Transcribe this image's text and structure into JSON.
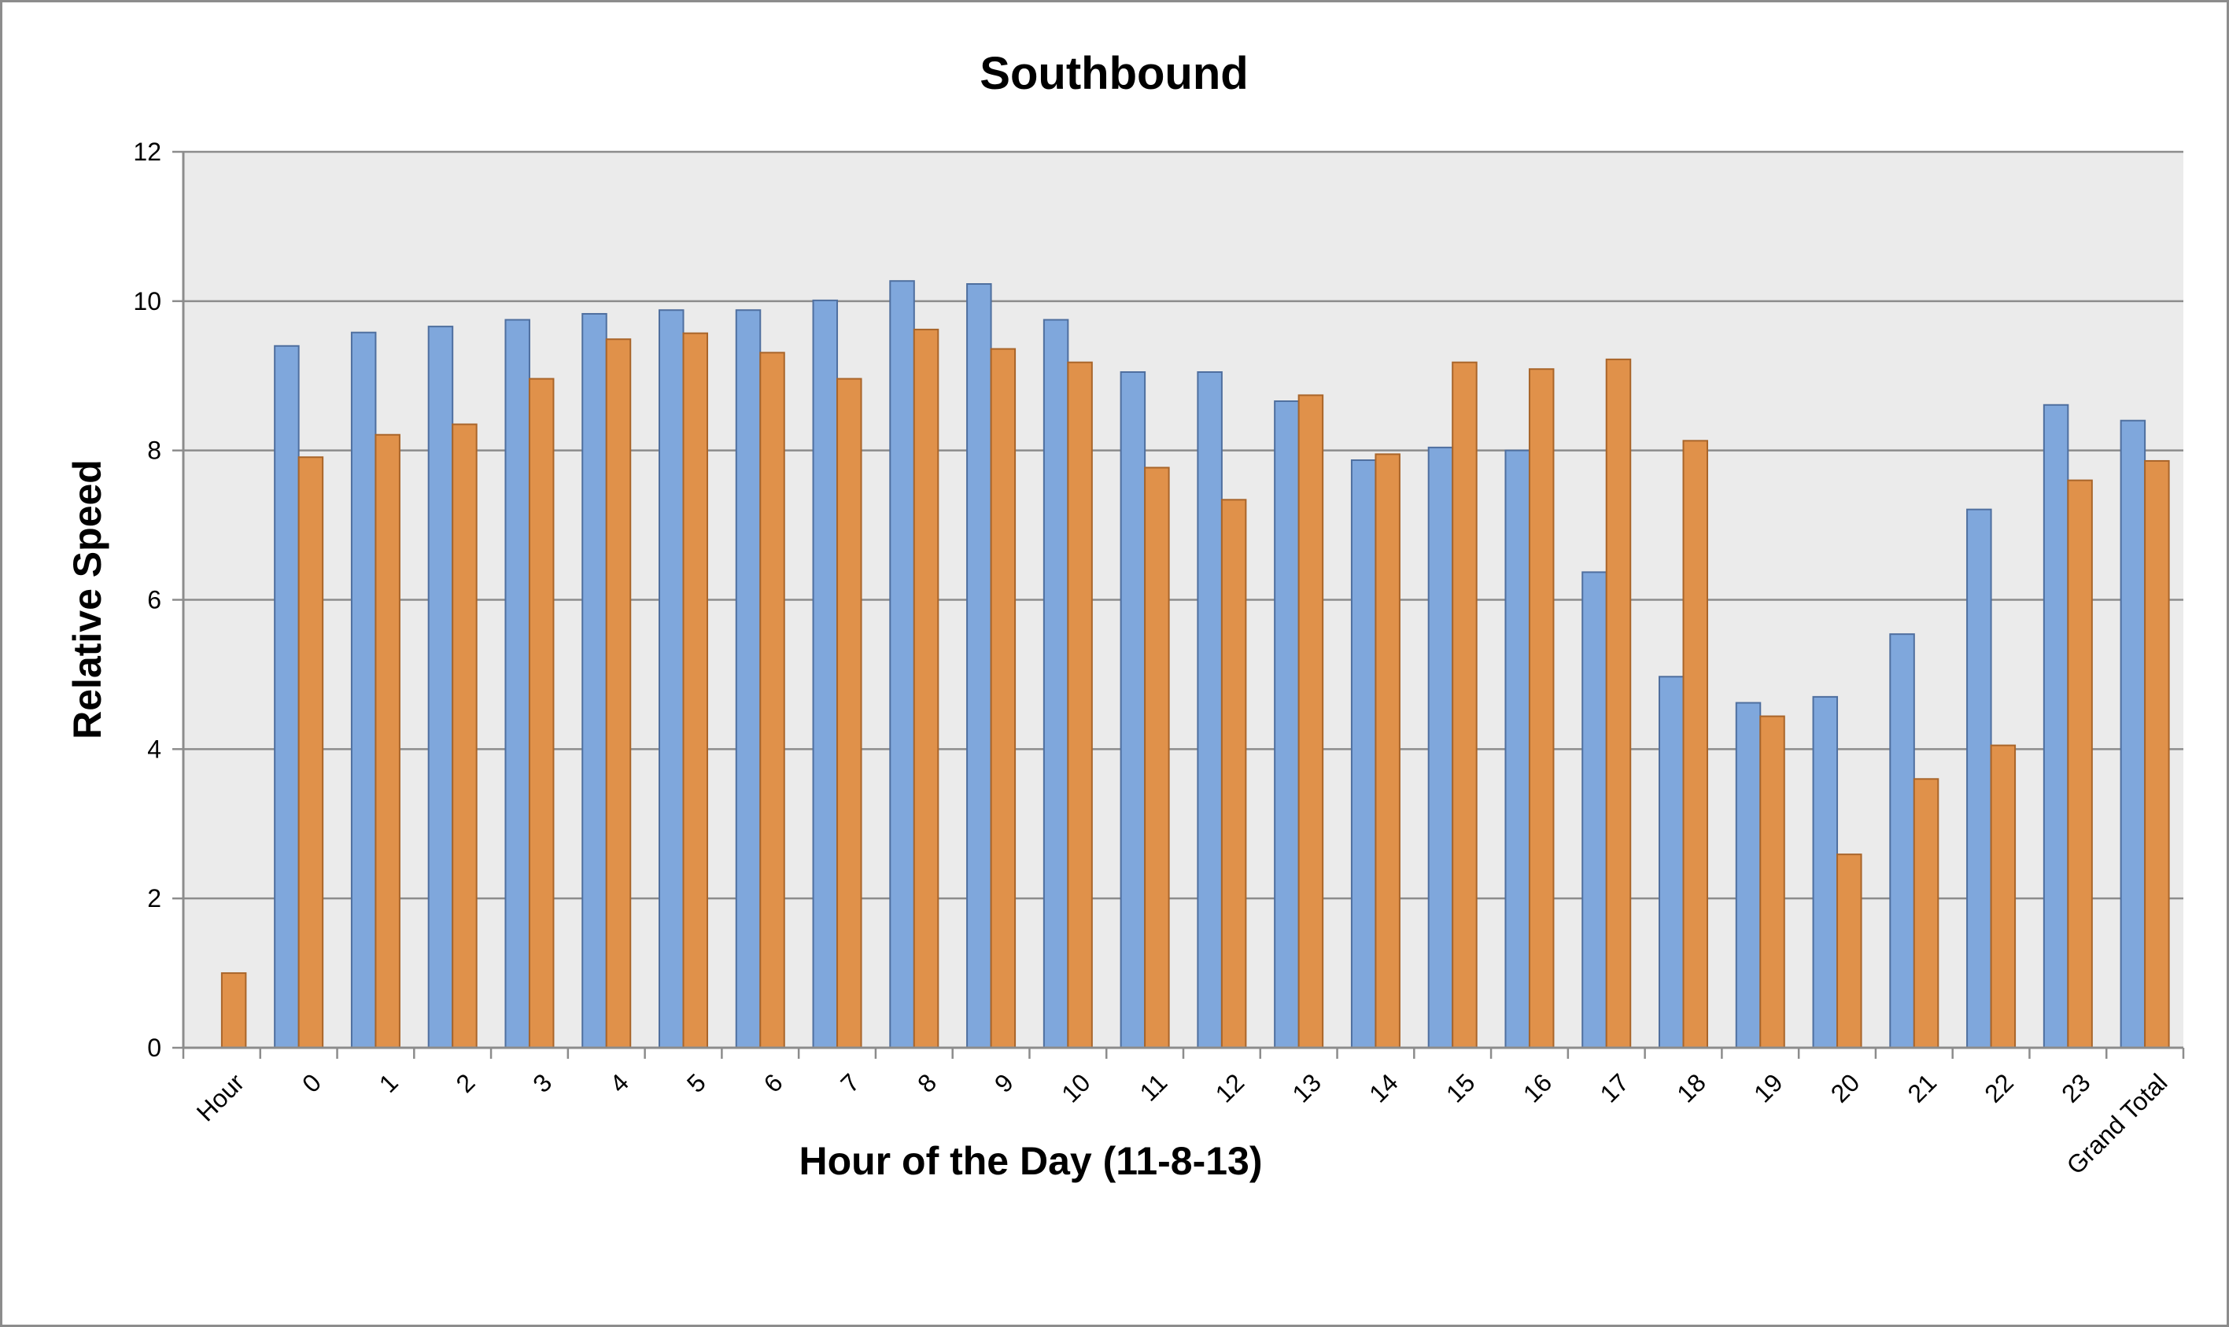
{
  "chart_data": {
    "type": "bar",
    "title": "Southbound",
    "xlabel": "Hour of the Day (11-8-13)",
    "ylabel": "Relative Speed",
    "ylim": [
      0,
      12
    ],
    "yticks": [
      0,
      2,
      4,
      6,
      8,
      10,
      12
    ],
    "grid": true,
    "legend": "none",
    "categories": [
      "Hour",
      "0",
      "1",
      "2",
      "3",
      "4",
      "5",
      "6",
      "7",
      "8",
      "9",
      "10",
      "11",
      "12",
      "13",
      "14",
      "15",
      "16",
      "17",
      "18",
      "19",
      "20",
      "21",
      "22",
      "23",
      "Grand Total"
    ],
    "series": [
      {
        "color": "#7fa7dc",
        "values": [
          null,
          9.4,
          9.58,
          9.66,
          9.75,
          9.83,
          9.88,
          9.88,
          10.01,
          10.27,
          10.23,
          9.75,
          9.05,
          9.05,
          8.66,
          7.87,
          8.04,
          8.0,
          6.37,
          4.97,
          4.62,
          4.7,
          5.54,
          7.21,
          8.61,
          8.4
        ]
      },
      {
        "color": "#e0914a",
        "values": [
          1.0,
          7.91,
          8.21,
          8.35,
          8.96,
          9.49,
          9.57,
          9.31,
          8.96,
          9.62,
          9.36,
          9.18,
          7.77,
          7.34,
          8.74,
          7.95,
          9.18,
          9.09,
          9.22,
          8.13,
          4.44,
          2.59,
          3.6,
          4.05,
          7.6,
          7.86
        ]
      }
    ],
    "plot_colors": {
      "plot_background": "#ebebeb",
      "gridline": "#8c8c8c",
      "blue_border": "#4f6f9f",
      "orange_border": "#a9652a"
    }
  }
}
